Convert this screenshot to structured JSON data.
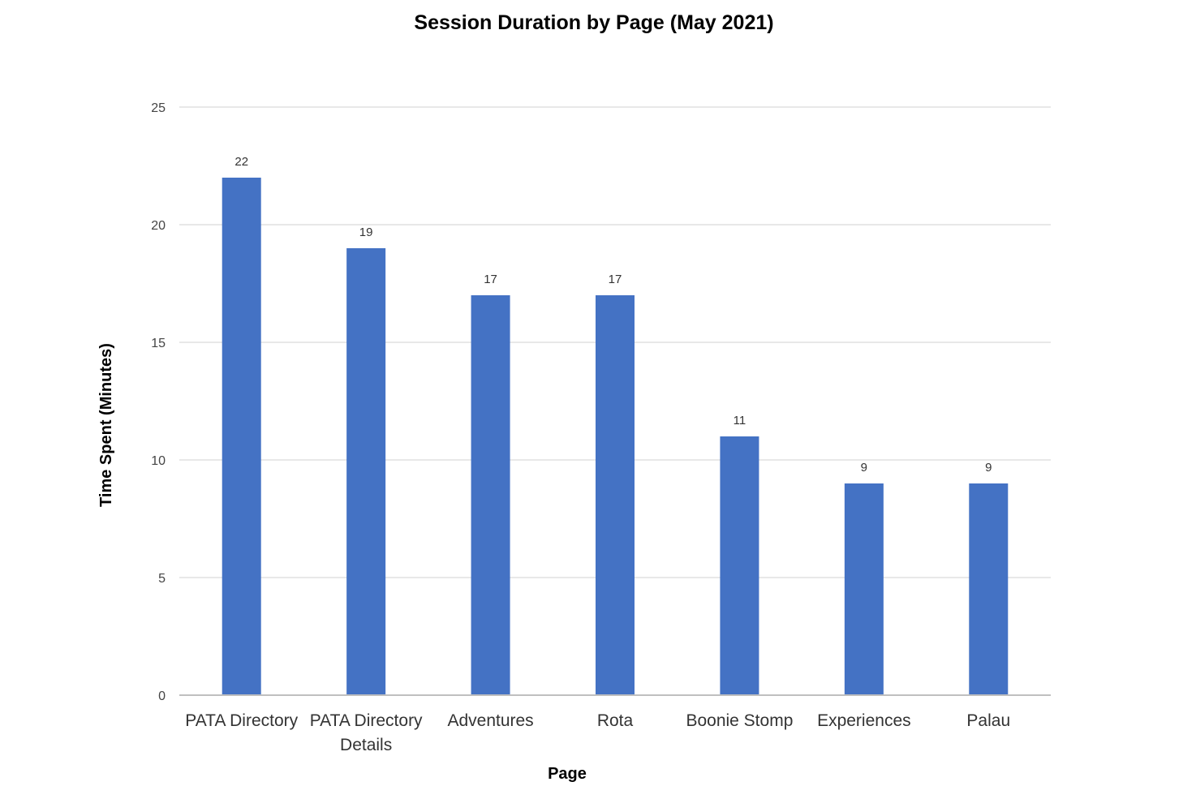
{
  "chart_data": {
    "type": "bar",
    "title": "Session Duration by Page (May 2021)",
    "xlabel": "Page",
    "ylabel": "Time Spent (Minutes)",
    "categories": [
      [
        "PATA Directory"
      ],
      [
        "PATA Directory",
        "Details"
      ],
      [
        "Adventures"
      ],
      [
        "Rota"
      ],
      [
        "Boonie Stomp"
      ],
      [
        "Experiences"
      ],
      [
        "Palau"
      ]
    ],
    "values": [
      22,
      19,
      17,
      17,
      11,
      9,
      9
    ],
    "data_labels": [
      "22",
      "19",
      "17",
      "17",
      "11",
      "9",
      "9"
    ],
    "yticks": [
      "0",
      "5",
      "10",
      "15",
      "20",
      "25"
    ],
    "ylim": [
      0,
      25
    ],
    "grid": true,
    "legend": "none",
    "colors": {
      "bar": "#4472C4",
      "grid": "#D9D9D9",
      "axis": "#BFBFBF"
    }
  }
}
